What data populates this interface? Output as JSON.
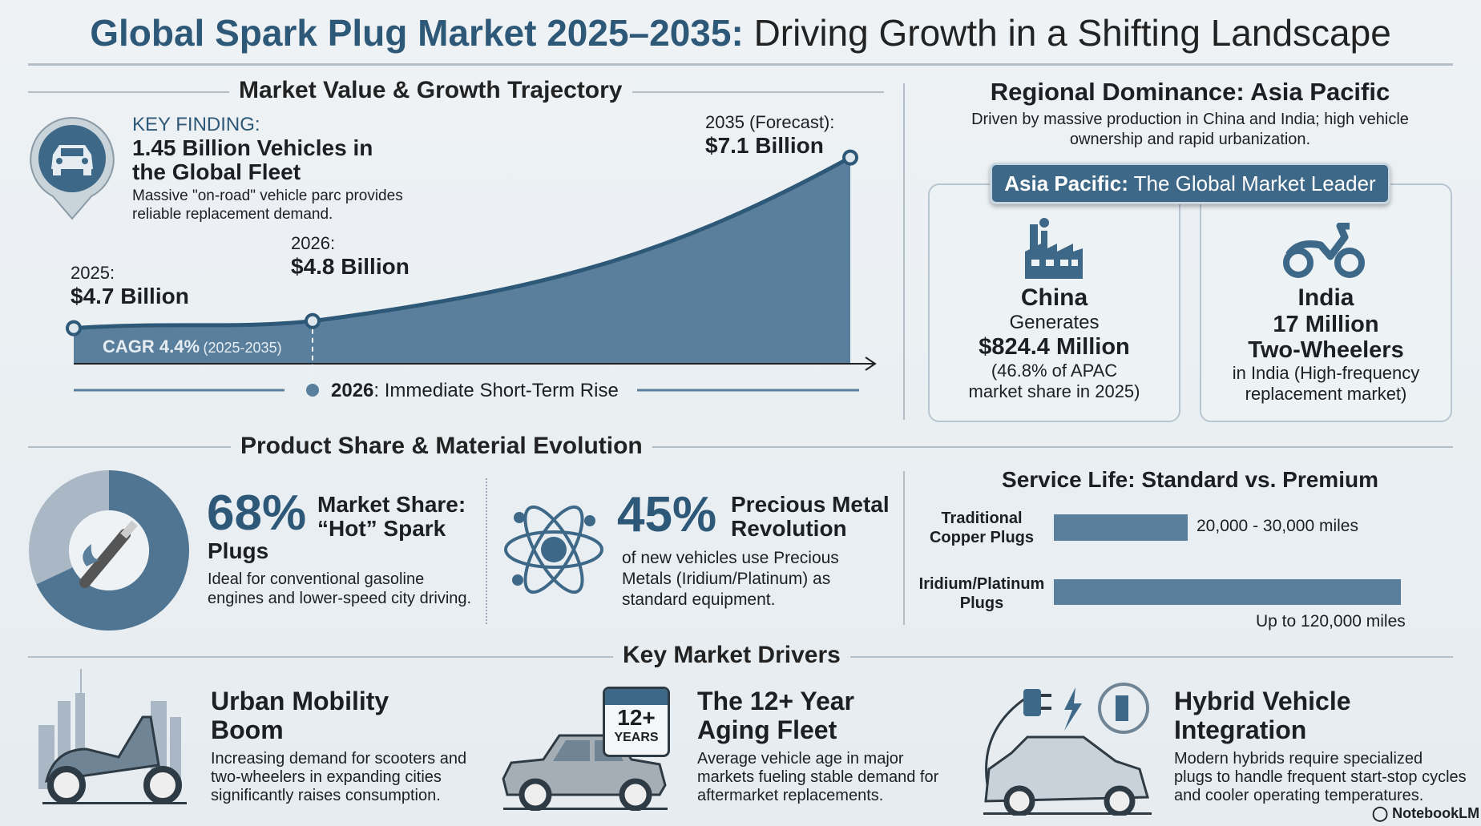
{
  "title": {
    "bold": "Global Spark Plug Market 2025–2035:",
    "rest": " Driving Growth in a Shifting Landscape"
  },
  "market": {
    "heading": "Market Value & Growth Trajectory",
    "key_label": "KEY FINDING:",
    "key_title_1": "1.45 Billion Vehicles in",
    "key_title_2": "the Global Fleet",
    "key_desc_1": "Massive \"on-road\" vehicle parc provides",
    "key_desc_2": "reliable replacement demand.",
    "cagr": "CAGR 4.4%",
    "cagr_range": "(2025-2035)",
    "callout_year": "2026",
    "callout_text": ": Immediate Short-Term Rise"
  },
  "chart_data": {
    "type": "area",
    "x": [
      "2025",
      "2026",
      "2035 (Forecast)"
    ],
    "values": [
      4.7,
      4.8,
      7.1
    ],
    "unit": "Billion USD",
    "labels": [
      {
        "year": "2025:",
        "value": "$4.7 Billion"
      },
      {
        "year": "2026:",
        "value": "$4.8 Billion"
      },
      {
        "year": "2035 (Forecast):",
        "value": "$7.1 Billion"
      }
    ],
    "ylim": [
      4.2,
      7.4
    ]
  },
  "regional": {
    "heading": "Regional Dominance: Asia Pacific",
    "sub_1": "Driven by massive production in China and India; high vehicle",
    "sub_2": "ownership and rapid urbanization.",
    "badge_bold": "Asia Pacific:",
    "badge_rest": " The Global Market Leader",
    "china": {
      "name": "China",
      "l1": "Generates",
      "value": "$824.4 Million",
      "l2": "(46.8% of APAC",
      "l3": "market share in 2025)"
    },
    "india": {
      "name": "India",
      "v1": "17 Million",
      "v2": "Two-Wheelers",
      "l1": "in India (High-frequency",
      "l2": "replacement market)"
    }
  },
  "product": {
    "heading": "Product Share & Material Evolution",
    "hot": {
      "pct": "68%",
      "t1": "Market Share:",
      "t2": "“Hot” Spark",
      "t3": "Plugs",
      "d1": "Ideal for conventional gasoline",
      "d2": "engines and lower-speed city driving.",
      "share": 68
    },
    "precious": {
      "pct": "45%",
      "t1": "Precious Metal",
      "t2": "Revolution",
      "d1": "of new vehicles use Precious",
      "d2": "Metals (Iridium/Platinum) as",
      "d3": "standard equipment."
    }
  },
  "service": {
    "heading": "Service Life: Standard vs. Premium",
    "rows": [
      {
        "l1": "Traditional",
        "l2": "Copper Plugs",
        "range": "20,000 - 30,000 miles",
        "max_miles": 30000
      },
      {
        "l1": "Iridium/Platinum",
        "l2": "Plugs",
        "range": "Up to 120,000 miles",
        "max_miles": 120000
      }
    ]
  },
  "drivers": {
    "heading": "Key Market Drivers",
    "items": [
      {
        "t1": "Urban Mobility",
        "t2": "Boom",
        "d1": "Increasing demand for scooters and",
        "d2": "two-wheelers in expanding cities",
        "d3": "significantly raises consumption."
      },
      {
        "t1": "The 12+ Year",
        "t2": "Aging Fleet",
        "d1": "Average vehicle age in major",
        "d2": "markets fueling stable demand for",
        "d3": "aftermarket replacements.",
        "cal1": "12+",
        "cal2": "YEARS"
      },
      {
        "t1": "Hybrid Vehicle",
        "t2": "Integration",
        "d1": "Modern hybrids require specialized",
        "d2": "plugs to handle frequent start-stop cycles",
        "d3": "and cooler operating temperatures."
      }
    ]
  },
  "footer": {
    "brand": "NotebookLM"
  },
  "colors": {
    "accent": "#2e5877",
    "fill": "#5a7f9c",
    "text": "#1c1f24"
  }
}
